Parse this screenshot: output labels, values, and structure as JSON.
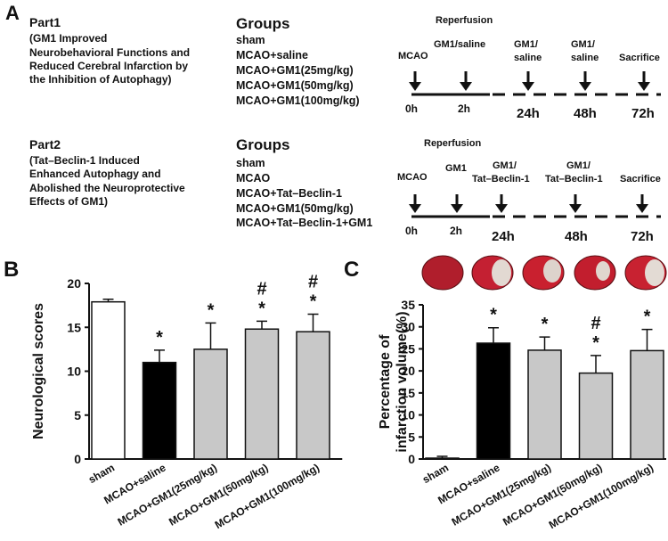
{
  "panel_a": {
    "label": "A",
    "part1": {
      "title": "Part1",
      "description": [
        "(GM1 Improved",
        "Neurobehavioral Functions and",
        "Reduced Cerebral Infarction by",
        "the Inhibition of Autophagy)"
      ],
      "groups_title": "Groups",
      "groups": [
        "sham",
        "MCAO+saline",
        "MCAO+GM1(25mg/kg)",
        "MCAO+GM1(50mg/kg)",
        "MCAO+GM1(100mg/kg)"
      ],
      "timeline": {
        "reperfusion": "Reperfusion",
        "events": [
          "MCAO",
          "GM1/saline",
          "GM1/",
          "saline",
          "GM1/",
          "saline",
          "Sacrifice"
        ],
        "times": [
          "0h",
          "2h",
          "24h",
          "48h",
          "72h"
        ]
      }
    },
    "part2": {
      "title": "Part2",
      "description": [
        "(Tat–Beclin-1 Induced",
        "Enhanced Autophagy and",
        "Abolished the Neuroprotective",
        "Effects of GM1)"
      ],
      "groups_title": "Groups",
      "groups": [
        "sham",
        "MCAO",
        "MCAO+Tat–Beclin-1",
        "MCAO+GM1(50mg/kg)",
        "MCAO+Tat–Beclin-1+GM1"
      ],
      "timeline": {
        "reperfusion": "Reperfusion",
        "events": [
          "MCAO",
          "GM1",
          "GM1/",
          "Tat–Beclin-1",
          "GM1/",
          "Tat–Beclin-1",
          "Sacrifice"
        ],
        "times": [
          "0h",
          "2h",
          "24h",
          "48h",
          "72h"
        ]
      }
    }
  },
  "chart_data": [
    {
      "type": "bar",
      "panel": "B",
      "ylabel": [
        "Neurological scores"
      ],
      "categories": [
        "sham",
        "MCAO+saline",
        "MCAO+GM1(25mg/kg)",
        "MCAO+GM1(50mg/kg)",
        "MCAO+GM1(100mg/kg)"
      ],
      "values": [
        17.9,
        11,
        12.5,
        14.8,
        14.5
      ],
      "errors": [
        0.3,
        1.4,
        3.0,
        0.9,
        2.0
      ],
      "colors": [
        "#ffffff",
        "#000000",
        "#c8c8c8",
        "#c8c8c8",
        "#c8c8c8"
      ],
      "annotations": [
        [],
        [
          "*"
        ],
        [
          "*"
        ],
        [
          "#",
          "*"
        ],
        [
          "#",
          "*"
        ]
      ],
      "ylim": [
        0,
        20
      ],
      "yticks": [
        0,
        5,
        10,
        15,
        20
      ]
    },
    {
      "type": "bar",
      "panel": "C",
      "ylabel": [
        "Percentage of",
        "infarction volume(%)"
      ],
      "categories": [
        "sham",
        "MCAO+saline",
        "MCAO+GM1(25mg/kg)",
        "MCAO+GM1(50mg/kg)",
        "MCAO+GM1(100mg/kg)"
      ],
      "values": [
        0.2,
        26.3,
        24.7,
        19.5,
        24.6
      ],
      "errors": [
        0.4,
        3.5,
        3.0,
        4.0,
        4.8
      ],
      "colors": [
        "#ffffff",
        "#000000",
        "#c8c8c8",
        "#c8c8c8",
        "#c8c8c8"
      ],
      "annotations": [
        [],
        [
          "*"
        ],
        [
          "*"
        ],
        [
          "#",
          "*"
        ],
        [
          "*"
        ]
      ],
      "ylim": [
        0,
        35
      ],
      "yticks": [
        0,
        5,
        10,
        15,
        20,
        25,
        30,
        35
      ]
    }
  ]
}
